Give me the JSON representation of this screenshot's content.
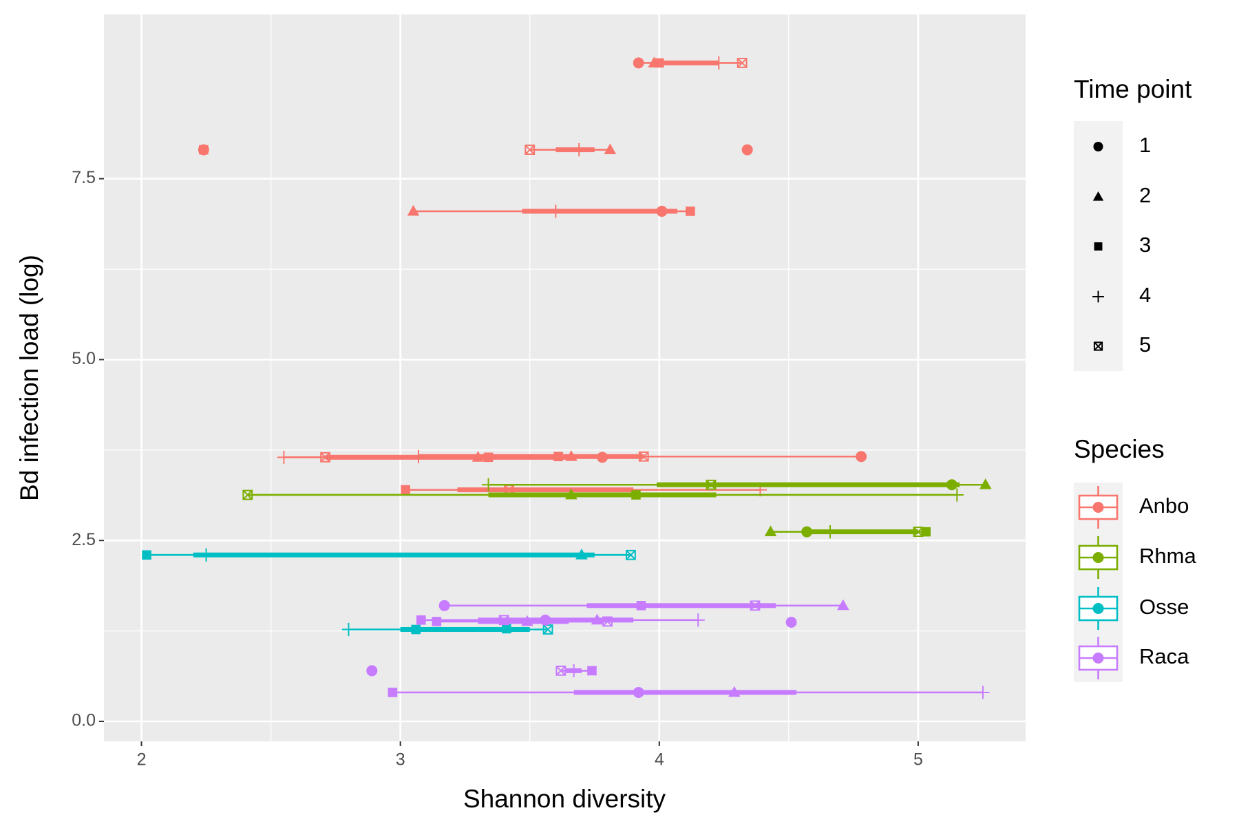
{
  "chart_data": {
    "type": "boxplot",
    "x_label": "Shannon diversity",
    "y_label": "Bd infection load (log)",
    "xlim": [
      1.855,
      5.415
    ],
    "ylim": [
      -0.276,
      9.77
    ],
    "xticks": [
      2,
      3,
      4,
      5
    ],
    "yticks": [
      {
        "value": 0,
        "label": "0.0"
      },
      2.5,
      {
        "value": 5,
        "label": "5.0"
      },
      7.5
    ],
    "grid": true,
    "minor_grid": true,
    "shape_legend": {
      "title": "Time point",
      "labels": [
        "1",
        "2",
        "3",
        "4",
        "5"
      ]
    },
    "color_legend_title": "Species",
    "series": [
      {
        "name": "Anbo",
        "color": "#f8766d",
        "groups": [
          {
            "y": 9.1,
            "x": [
              3.92,
              3.98,
              4.0,
              4.23,
              4.32
            ],
            "box": [
              4.0,
              4.23
            ]
          },
          {
            "y": 7.9,
            "x": [
              2.24,
              null,
              2.24,
              null,
              null
            ],
            "box": [
              2.24,
              2.24
            ]
          },
          {
            "y": 7.9,
            "x": [
              null,
              3.81,
              null,
              3.69,
              3.5
            ],
            "box": [
              3.6,
              3.75
            ]
          },
          {
            "y": 7.9,
            "x": [
              4.34,
              null,
              null,
              null,
              null
            ],
            "box": [
              4.34,
              4.34
            ]
          },
          {
            "y": 7.05,
            "x": [
              4.01,
              3.05,
              4.12,
              3.6,
              null
            ],
            "box": [
              3.47,
              4.07
            ]
          },
          {
            "y": 3.65,
            "x": [
              3.78,
              3.3,
              3.34,
              2.55,
              2.71
            ],
            "box": [
              2.71,
              3.66
            ]
          },
          {
            "y": 3.66,
            "x": [
              4.78,
              3.66,
              3.61,
              3.07,
              3.94
            ],
            "box": [
              3.07,
              3.94
            ]
          },
          {
            "y": 3.2,
            "x": [
              null,
              null,
              3.02,
              4.39,
              3.42
            ],
            "box": [
              3.22,
              3.9
            ]
          }
        ]
      },
      {
        "name": "Rhma",
        "color": "#7cae00",
        "groups": [
          {
            "y": 3.27,
            "x": [
              5.13,
              5.26,
              null,
              3.34,
              4.2
            ],
            "box": [
              3.99,
              5.16
            ]
          },
          {
            "y": 3.13,
            "x": [
              null,
              3.66,
              3.91,
              5.15,
              2.41
            ],
            "box": [
              3.34,
              4.22
            ]
          },
          {
            "y": 2.62,
            "x": [
              4.57,
              4.43,
              5.03,
              4.66,
              5.0
            ],
            "box": [
              4.57,
              5.0
            ]
          }
        ]
      },
      {
        "name": "Osse",
        "color": "#00bfc4",
        "groups": [
          {
            "y": 2.3,
            "x": [
              null,
              3.7,
              2.02,
              2.25,
              3.89
            ],
            "box": [
              2.2,
              3.75
            ]
          },
          {
            "y": 1.27,
            "x": [
              null,
              null,
              3.06,
              2.8,
              3.57
            ],
            "box": [
              3.0,
              3.5
            ]
          },
          {
            "y": 1.28,
            "x": [
              null,
              null,
              3.41,
              null,
              null
            ],
            "box": [
              3.41,
              3.41
            ]
          }
        ]
      },
      {
        "name": "Raca",
        "color": "#c77cff",
        "groups": [
          {
            "y": 1.6,
            "x": [
              3.17,
              4.71,
              3.93,
              null,
              4.37
            ],
            "box": [
              3.72,
              4.45
            ]
          },
          {
            "y": 1.4,
            "x": [
              3.56,
              3.76,
              3.08,
              4.15,
              3.4
            ],
            "box": [
              3.3,
              3.9
            ]
          },
          {
            "y": 1.38,
            "x": [
              null,
              3.49,
              3.14,
              null,
              3.8
            ],
            "box": [
              3.3,
              3.65
            ]
          },
          {
            "y": 1.37,
            "x": [
              4.51,
              null,
              null,
              null,
              null
            ],
            "box": [
              4.51,
              4.51
            ]
          },
          {
            "y": 0.7,
            "x": [
              2.89,
              null,
              null,
              null,
              null
            ],
            "box": [
              2.89,
              2.89
            ]
          },
          {
            "y": 0.7,
            "x": [
              null,
              null,
              3.74,
              3.67,
              3.62
            ],
            "box": [
              3.64,
              3.7
            ]
          },
          {
            "y": 0.4,
            "x": [
              3.92,
              4.29,
              2.97,
              5.25,
              null
            ],
            "box": [
              3.67,
              4.53
            ]
          }
        ]
      }
    ]
  }
}
